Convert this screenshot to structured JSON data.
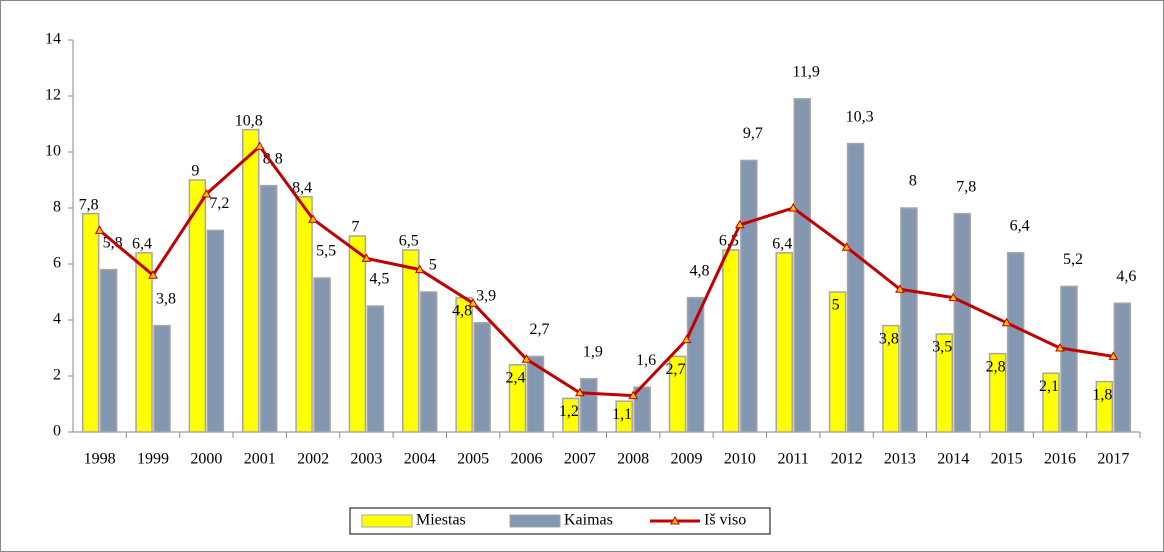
{
  "chart_data": {
    "type": "bar-line",
    "categories": [
      "1998",
      "1999",
      "2000",
      "2001",
      "2002",
      "2003",
      "2004",
      "2005",
      "2006",
      "2007",
      "2008",
      "2009",
      "2010",
      "2011",
      "2012",
      "2013",
      "2014",
      "2015",
      "2016",
      "2017"
    ],
    "series": [
      {
        "name": "Miestas",
        "type": "bar",
        "color": "#ffff00",
        "values": [
          7.8,
          6.4,
          9,
          10.8,
          8.4,
          7,
          6.5,
          4.8,
          2.4,
          1.2,
          1.1,
          2.7,
          6.5,
          6.4,
          5,
          3.8,
          3.5,
          2.8,
          2.1,
          1.8
        ],
        "value_labels": [
          "7,8",
          "6,4",
          "9",
          "10,8",
          "8,4",
          "7",
          "6,5",
          "4,8",
          "2,4",
          "1,2",
          "1,1",
          "2,7",
          "6,5",
          "6,4",
          "5",
          "3,8",
          "3,5",
          "2,8",
          "2,1",
          "1,8"
        ]
      },
      {
        "name": "Kaimas",
        "type": "bar",
        "color": "#8497b0",
        "values": [
          5.8,
          3.8,
          7.2,
          8.8,
          5.5,
          4.5,
          5,
          3.9,
          2.7,
          1.9,
          1.6,
          4.8,
          9.7,
          11.9,
          10.3,
          8,
          7.8,
          6.4,
          5.2,
          4.6
        ],
        "value_labels": [
          "5,8",
          "3,8",
          "7,2",
          "8,8",
          "5,5",
          "4,5",
          "5",
          "3,9",
          "2,7",
          "1,9",
          "1,6",
          "4,8",
          "9,7",
          "11,9",
          "10,3",
          "8",
          "7,8",
          "6,4",
          "5,2",
          "4,6"
        ]
      },
      {
        "name": "Iš viso",
        "type": "line",
        "color": "#c00000",
        "values": [
          7.2,
          5.6,
          8.5,
          10.2,
          7.6,
          6.2,
          5.8,
          4.6,
          2.6,
          1.4,
          1.3,
          3.3,
          7.4,
          8.0,
          6.6,
          5.1,
          4.8,
          3.9,
          3.0,
          2.7
        ]
      }
    ],
    "ylim": [
      0,
      14
    ],
    "yticks": [
      0,
      2,
      4,
      6,
      8,
      10,
      12,
      14
    ],
    "legend": "bottom"
  }
}
